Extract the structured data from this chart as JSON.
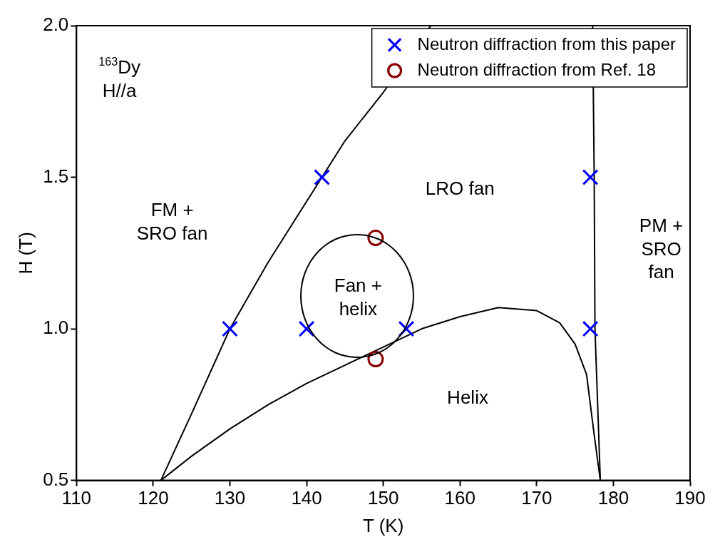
{
  "chart_data": {
    "type": "scatter",
    "xlabel": "T (K)",
    "ylabel": "H (T)",
    "xlim": [
      110,
      190
    ],
    "xticks": [
      110,
      120,
      130,
      140,
      150,
      160,
      170,
      180,
      190
    ],
    "ylim": [
      0.5,
      2.0
    ],
    "yticks": [
      {
        "value": 0.5,
        "label": "0.5"
      },
      {
        "value": 1.0,
        "label": "1.0"
      },
      {
        "value": 1.5,
        "label": "1.5"
      },
      {
        "value": 2.0,
        "label": "2.0"
      }
    ],
    "grid": false,
    "legend": "top right",
    "series": [
      {
        "name": "Neutron diffraction from this paper",
        "marker": "cross",
        "color": "#0000ff",
        "x": [
          130,
          140,
          153,
          177,
          142,
          177
        ],
        "values": [
          1.0,
          1.0,
          1.0,
          1.0,
          1.5,
          1.5
        ]
      },
      {
        "name": "Neutron diffraction from Ref. 18",
        "marker": "circle",
        "color": "#8b0000",
        "x": [
          149,
          149
        ],
        "values": [
          1.3,
          0.9
        ]
      },
      {
        "type": "line",
        "marker": "none",
        "color": "#000000",
        "x": [
          121,
          125,
          130,
          135,
          140,
          145,
          150,
          156.2
        ],
        "values": [
          0.5,
          0.72,
          1.0,
          1.22,
          1.42,
          1.62,
          1.78,
          2.0
        ]
      },
      {
        "type": "line",
        "marker": "none",
        "color": "#000000",
        "x": [
          121,
          125,
          130,
          135,
          140,
          145,
          150,
          155,
          160,
          165,
          170,
          173,
          175,
          176.5,
          177.5,
          178.3
        ],
        "values": [
          0.5,
          0.58,
          0.67,
          0.75,
          0.82,
          0.88,
          0.94,
          1.0,
          1.04,
          1.07,
          1.06,
          1.02,
          0.95,
          0.85,
          0.65,
          0.5
        ]
      },
      {
        "type": "line",
        "marker": "none",
        "color": "#000000",
        "x": [
          177.3,
          177.5,
          177.6,
          178.3
        ],
        "values": [
          2.0,
          1.5,
          1.0,
          0.5
        ]
      }
    ],
    "annotations": [
      "$^{163}$Dy\nH//a",
      "FM +\nSRO fan",
      "LRO fan",
      "PM +\nSRO\nfan",
      "Fan +\nhelix",
      "Helix"
    ]
  }
}
